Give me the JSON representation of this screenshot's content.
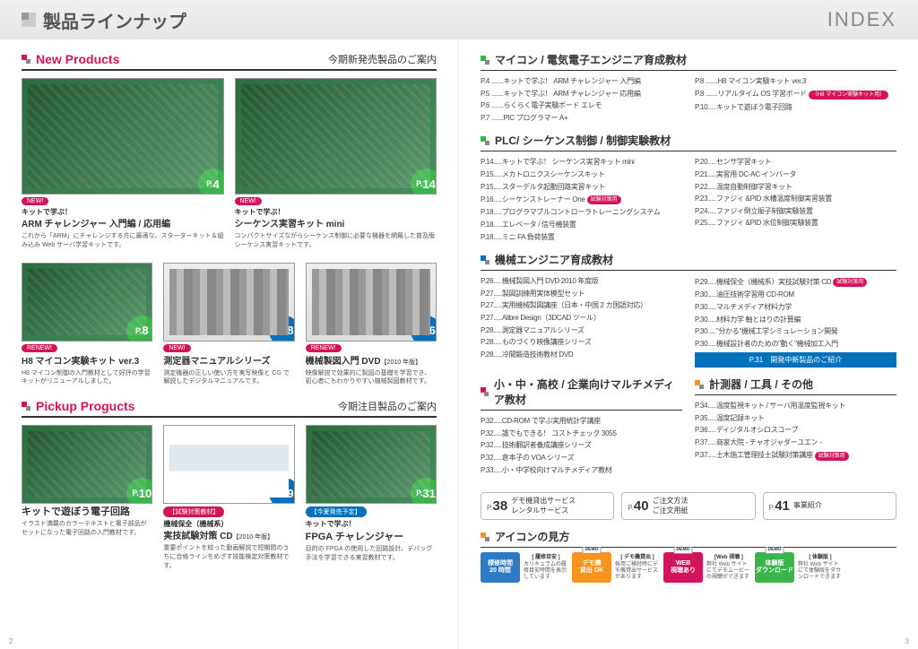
{
  "header": {
    "title": "製品ラインナップ",
    "index": "INDEX"
  },
  "left": {
    "sec1": {
      "title": "New Products",
      "sub": "今期新発売製品のご案内",
      "cards": [
        {
          "badge": "P.4",
          "tag": "NEW!",
          "kicker": "キットで学ぶ！",
          "title": "ARM チャレンジャー 入門編 / 応用編",
          "desc": "これから「ARM」にチャレンジする方に最適な、スターターキット＆組み込み Web サーバ学習キットです。"
        },
        {
          "badge": "P.14",
          "tag": "NEW!",
          "kicker": "キットで学ぶ！",
          "title": "シーケンス実習キット mini",
          "desc": "コンパクトサイズながらシーケンス制御に必要な機器を網羅した普及版シーケンス実習キットです。"
        }
      ],
      "row2": [
        {
          "badge": "P.8",
          "tag": "RENEW!",
          "title": "H8 マイコン実験キット ver.3",
          "desc": "H8 マイコン制御の入門教材として好評の学習キットがリニューアルしました。"
        },
        {
          "badge": "P.28",
          "tag": "NEW!",
          "title": "測定器マニュアルシリーズ",
          "desc": "測定機器の正しい使い方を実写映像と CG で解説したデジタルマニュアルです。"
        },
        {
          "badge": "P.26",
          "tag": "RENEW!",
          "title": "機械製図入門 DVD",
          "titleNote": "【2010 年版】",
          "desc": "映像解説で効果的に製図の基礎を学習でき、初心者にもわかりやすい機械製図教材です。"
        }
      ]
    },
    "sec2": {
      "title": "Pickup Progucts",
      "sub": "今期注目製品のご案内",
      "cards": [
        {
          "badge": "P.10",
          "title": "キットで遊ぼう電子回路",
          "desc": "イラスト満載のカラーテキストと電子部品がセットになった電子回路の入門教材です。"
        },
        {
          "badge": "P.29",
          "tag": "【試験対策教材】",
          "kicker": "機械保全（機械系）",
          "title": "実技試験対策 CD",
          "titleNote": "【2010 年版】",
          "desc": "重要ポイントを絞った動画解説で短期間のうちに合格ラインをめざす技能検定対策教材です。"
        },
        {
          "badge": "P.31",
          "tag": "【今夏発売予定】",
          "kicker": "キットで学ぶ！",
          "title": "FPGA チャレンジャー",
          "desc": "目的の FPGA の使用した回路設計、デバッグ手法を学習できる実習教材です。"
        }
      ]
    }
  },
  "right": {
    "sec1": {
      "title": "マイコン / 電気電子エンジニア育成教材",
      "sq": "green",
      "left": [
        "P.4 .......キットで学ぶ！ ARM チャレンジャー 入門編",
        "P.5 .......キットで学ぶ！ ARM チャレンジャー 応用編",
        "P.6 .......らくらく電子実験ボード エレモ",
        "P.7 .......PIC プログラマー A+"
      ],
      "rightc": [
        "P.8 .......H8 マイコン実験キット ver.3",
        [
          "P.8 .......リアルタイム OS 学習ボード",
          "（H8 マイコン実験キット用）"
        ],
        "P.10.....キットで遊ぼう電子回路"
      ]
    },
    "sec2": {
      "title": "PLC/ シーケンス制御 / 制御実験教材",
      "sq": "green",
      "left": [
        "P.14.....キットで学ぶ！ シーケンス実習キット mini",
        "P.15.....メカトロニクスシーケンスキット",
        "P.15.....スターデルタ起動回路実習キット",
        [
          "P.16.....シーケンストレーナー One",
          "試験対策用"
        ],
        "P.18.....プログラマブルコントローラトレーニングシステム",
        "P.18.....エレベータ / 信号機装置",
        "P.18.....ミニ FA 負荷装置"
      ],
      "rightc": [
        "P.20.....センサ学習キット",
        "P.21.....実習用 DC-AC インバータ",
        "P.22.....温度自動制御学習キット",
        "P.23.....ファジィ &PID 水槽温度制御実習装置",
        "P.24.....ファジィ倒立振子制御実験装置",
        "P.25.....ファジィ &PID 水位制御実験装置"
      ]
    },
    "sec3": {
      "title": "機械エンジニア育成教材",
      "sq": "blue",
      "left": [
        "P.26.....機械製図入門 DVD 2010 年度版",
        "P.27.....製図訓練用実体模型セット",
        "P.27.....実用機械製図講座（日本・中国 2 カ国語対応）",
        "P.27.....Alibre Design（3DCAD ツール）",
        "P.28.....測定器マニュアルシリーズ",
        "P.28.....ものづくり映像講座シリーズ",
        "P.28.....冷間鍛造技術教材 DVD"
      ],
      "rightc": [
        [
          "P.29.....機械保全（機械系）実技試験対策 CD",
          "試験対策用"
        ],
        "P.30.....油圧技術学習用 CD-ROM",
        "P.30.....マルチメディア材料力学",
        "P.30.....材料力学 軸とはりの計算編",
        "P.30.....\"分かる\"機械工学シミュレーション開発",
        "P.30.....機械設計者のための\"動く\"機械加工入門"
      ],
      "callout": "P.31　開発中新製品のご紹介"
    },
    "sec4a": {
      "title": "小・中・高校 / 企業向けマルチメディア教材",
      "sq": "red",
      "items": [
        "P.32.....CD-ROM で学ぶ実用統計学講座",
        "P.32.....誰でもできる！ コストチェック 3055",
        "P.32.....技術翻訳者養成講座シリーズ",
        "P.32.....倉本子の VOA シリーズ",
        "P.33.....小・中学校向けマルチメディア教材"
      ]
    },
    "sec4b": {
      "title": "計測器 / 工具 / その他",
      "sq": "orange",
      "items": [
        "P.34.....温度監視キット / サーバ用温度監視キット",
        "P.35.....温度記録キット",
        "P.36.....ディジタルオシロスコープ",
        "P.37.....商家大院 - チャオジャダーユエン -",
        [
          "P.37.....土木施工管理技士試験対策講座",
          "試験対策用"
        ]
      ]
    },
    "services": [
      {
        "p": "38",
        "txt": "デモ機貸出サービス\nレンタルサービス"
      },
      {
        "p": "40",
        "txt": "ご注文方法\nご注文用紙"
      },
      {
        "p": "41",
        "txt": "事業紹介"
      }
    ],
    "iconhead": "アイコンの見方",
    "icons": [
      {
        "cls": "blue",
        "l1": "標修時間",
        "l2": "20 時間",
        "head": "[ 履修目安 ]",
        "desc": "カリキュラムの履修目安時間を表示しています"
      },
      {
        "cls": "orange",
        "l1": "デモ機",
        "l2": "貸出 OK",
        "demo": "DEMO",
        "head": "[ デモ機貸出 ]",
        "desc": "採用ご検討時にデモ機貸出サービスがあります"
      },
      {
        "cls": "red",
        "l1": "WEB",
        "l2": "視聴あり",
        "demo": "DEMO",
        "head": "[Web 視聴 ]",
        "desc": "弊社 Web サイトにてデモムービーの視聴ができます"
      },
      {
        "cls": "green",
        "l1": "体験版",
        "l2": "ダウンロード",
        "demo": "DEMO",
        "head": "[ 体験版 ]",
        "desc": "弊社 Web サイトにて体験版をダウンロードできます"
      }
    ]
  },
  "pagenums": {
    "l": "2",
    "r": "3"
  }
}
